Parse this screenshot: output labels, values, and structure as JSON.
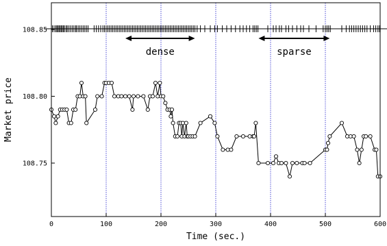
{
  "chart_data": {
    "type": "scatter",
    "title": "",
    "xlabel": "Time (sec.)",
    "ylabel": "Market price",
    "xlim": [
      0,
      600
    ],
    "ylim": [
      108.71,
      108.87
    ],
    "xticks": [
      0,
      100,
      200,
      300,
      400,
      500,
      600
    ],
    "xtick_labels": [
      "0",
      "100",
      "200",
      "300",
      "400",
      "500",
      "600"
    ],
    "yticks": [
      108.75,
      108.8,
      108.85
    ],
    "ytick_labels": [
      "108.75",
      "108.80",
      "108.85"
    ],
    "vertical_guides": [
      100,
      200,
      300,
      400,
      500
    ],
    "guide_color": "#2222cc",
    "series": [
      {
        "style": "line-with-open-circles",
        "points": [
          [
            0,
            108.79
          ],
          [
            5,
            108.785
          ],
          [
            8,
            108.78
          ],
          [
            12,
            108.785
          ],
          [
            16,
            108.79
          ],
          [
            20,
            108.79
          ],
          [
            24,
            108.79
          ],
          [
            28,
            108.79
          ],
          [
            32,
            108.78
          ],
          [
            36,
            108.78
          ],
          [
            40,
            108.79
          ],
          [
            44,
            108.79
          ],
          [
            48,
            108.8
          ],
          [
            52,
            108.8
          ],
          [
            55,
            108.81
          ],
          [
            58,
            108.8
          ],
          [
            62,
            108.8
          ],
          [
            64,
            108.78
          ],
          [
            80,
            108.79
          ],
          [
            84,
            108.8
          ],
          [
            92,
            108.8
          ],
          [
            97,
            108.81
          ],
          [
            100,
            108.81
          ],
          [
            105,
            108.81
          ],
          [
            110,
            108.81
          ],
          [
            115,
            108.8
          ],
          [
            122,
            108.8
          ],
          [
            128,
            108.8
          ],
          [
            135,
            108.8
          ],
          [
            142,
            108.8
          ],
          [
            148,
            108.79
          ],
          [
            150,
            108.8
          ],
          [
            158,
            108.8
          ],
          [
            168,
            108.8
          ],
          [
            176,
            108.79
          ],
          [
            180,
            108.8
          ],
          [
            185,
            108.8
          ],
          [
            190,
            108.81
          ],
          [
            194,
            108.8
          ],
          [
            198,
            108.81
          ],
          [
            200,
            108.8
          ],
          [
            204,
            108.8
          ],
          [
            208,
            108.795
          ],
          [
            212,
            108.79
          ],
          [
            216,
            108.79
          ],
          [
            218,
            108.785
          ],
          [
            220,
            108.79
          ],
          [
            222,
            108.78
          ],
          [
            226,
            108.77
          ],
          [
            230,
            108.77
          ],
          [
            233,
            108.78
          ],
          [
            236,
            108.78
          ],
          [
            238,
            108.77
          ],
          [
            240,
            108.78
          ],
          [
            243,
            108.77
          ],
          [
            246,
            108.78
          ],
          [
            248,
            108.77
          ],
          [
            250,
            108.77
          ],
          [
            254,
            108.77
          ],
          [
            258,
            108.77
          ],
          [
            262,
            108.77
          ],
          [
            272,
            108.78
          ],
          [
            290,
            108.785
          ],
          [
            298,
            108.78
          ],
          [
            303,
            108.77
          ],
          [
            313,
            108.76
          ],
          [
            322,
            108.76
          ],
          [
            328,
            108.76
          ],
          [
            338,
            108.77
          ],
          [
            350,
            108.77
          ],
          [
            362,
            108.77
          ],
          [
            368,
            108.77
          ],
          [
            370,
            108.77
          ],
          [
            373,
            108.78
          ],
          [
            378,
            108.75
          ],
          [
            395,
            108.75
          ],
          [
            405,
            108.75
          ],
          [
            410,
            108.755
          ],
          [
            415,
            108.75
          ],
          [
            420,
            108.75
          ],
          [
            428,
            108.75
          ],
          [
            435,
            108.74
          ],
          [
            440,
            108.75
          ],
          [
            448,
            108.75
          ],
          [
            458,
            108.75
          ],
          [
            462,
            108.75
          ],
          [
            472,
            108.75
          ],
          [
            500,
            108.76
          ],
          [
            503,
            108.76
          ],
          [
            505,
            108.765
          ],
          [
            508,
            108.77
          ],
          [
            530,
            108.78
          ],
          [
            540,
            108.77
          ],
          [
            546,
            108.77
          ],
          [
            552,
            108.77
          ],
          [
            558,
            108.76
          ],
          [
            562,
            108.75
          ],
          [
            566,
            108.76
          ],
          [
            570,
            108.77
          ],
          [
            574,
            108.77
          ],
          [
            582,
            108.77
          ],
          [
            590,
            108.76
          ],
          [
            593,
            108.76
          ],
          [
            596,
            108.74
          ],
          [
            600,
            108.74
          ]
        ]
      }
    ],
    "tick_rug": {
      "description_free": true,
      "times": [
        2,
        5,
        8,
        10,
        12,
        14,
        16,
        18,
        20,
        22,
        24,
        27,
        29,
        32,
        35,
        38,
        41,
        44,
        46,
        49,
        52,
        55,
        58,
        61,
        64,
        67,
        78,
        82,
        86,
        90,
        94,
        97,
        100,
        103,
        106,
        109,
        112,
        115,
        118,
        121,
        124,
        127,
        130,
        133,
        136,
        139,
        142,
        145,
        148,
        151,
        154,
        157,
        160,
        163,
        166,
        169,
        172,
        175,
        178,
        181,
        184,
        187,
        190,
        193,
        196,
        199,
        202,
        205,
        208,
        211,
        214,
        217,
        220,
        223,
        226,
        229,
        232,
        235,
        238,
        241,
        244,
        247,
        250,
        253,
        256,
        259,
        262,
        266,
        272,
        280,
        290,
        298,
        303,
        312,
        320,
        328,
        336,
        344,
        350,
        356,
        362,
        368,
        371,
        374,
        377,
        395,
        405,
        410,
        416,
        420,
        428,
        433,
        440,
        448,
        455,
        460,
        470,
        483,
        496,
        500,
        503,
        506,
        509,
        530,
        538,
        544,
        548,
        552,
        556,
        560,
        564,
        568,
        572,
        576,
        582,
        588,
        592,
        596,
        599
      ]
    },
    "annotations": [
      {
        "text": "dense",
        "x_from": 135,
        "x_to": 262,
        "arrow": "double"
      },
      {
        "text": "sparse",
        "x_from": 378,
        "x_to": 508,
        "arrow": "double"
      }
    ],
    "grid": false,
    "legend": "none"
  }
}
